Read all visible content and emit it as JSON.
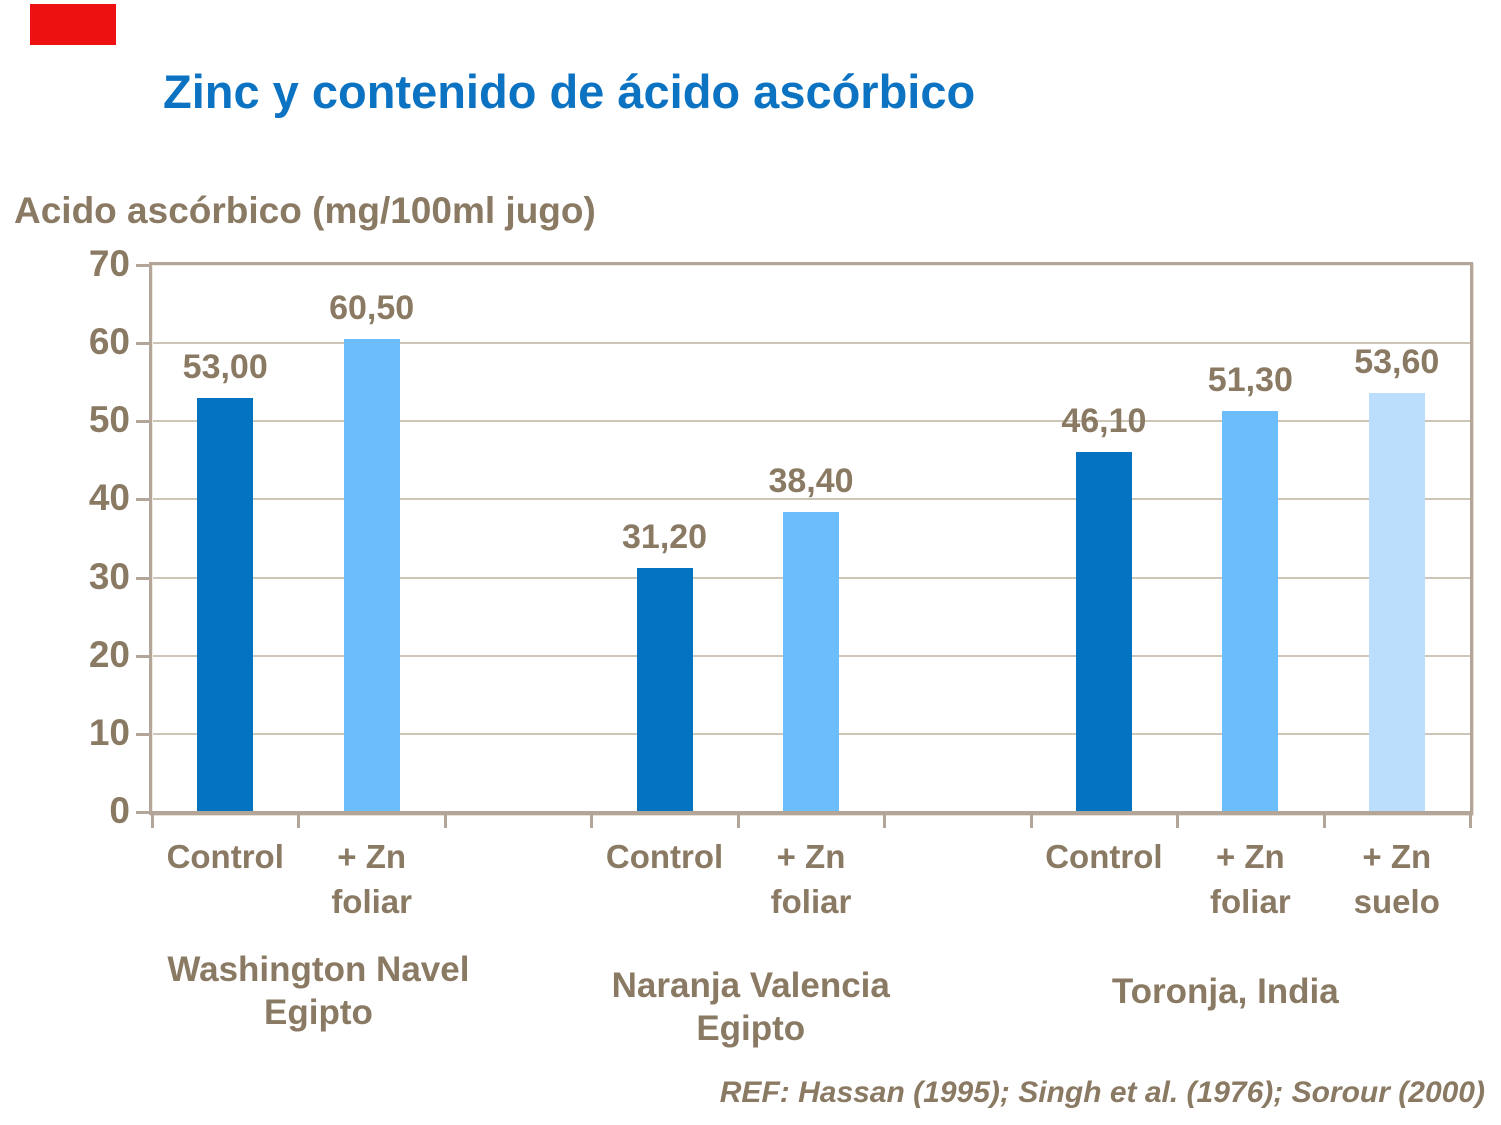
{
  "page": {
    "background": "#ffffff"
  },
  "decoration": {
    "accent_rect_color": "#ee1111"
  },
  "title": {
    "text": "Zinc y contenido de ácido ascórbico",
    "color": "#0c73c3"
  },
  "chart_data": {
    "type": "bar",
    "title": "Zinc y contenido de ácido ascórbico",
    "ylabel": "Acido ascórbico (mg/100ml jugo)",
    "xlabel": "",
    "ylim": [
      0,
      70
    ],
    "yticks": [
      0,
      10,
      20,
      30,
      40,
      50,
      60,
      70
    ],
    "grid": true,
    "legend": "none",
    "value_decimal_separator": ",",
    "groups": [
      {
        "name": "Washington Navel Egipto",
        "name_lines": [
          "Washington Navel",
          "Egipto"
        ],
        "bars": [
          {
            "label_lines": [
              "Control"
            ],
            "value": 53.0,
            "value_label": "53,00",
            "series": "Control",
            "color": "#0473c1"
          },
          {
            "label_lines": [
              "+ Zn",
              "foliar"
            ],
            "value": 60.5,
            "value_label": "60,50",
            "series": "+ Zn foliar",
            "color": "#6cbdfb"
          }
        ]
      },
      {
        "name": "Naranja Valencia Egipto",
        "name_lines": [
          "Naranja Valencia",
          "Egipto"
        ],
        "bars": [
          {
            "label_lines": [
              "Control"
            ],
            "value": 31.2,
            "value_label": "31,20",
            "series": "Control",
            "color": "#0473c1"
          },
          {
            "label_lines": [
              "+ Zn",
              "foliar"
            ],
            "value": 38.4,
            "value_label": "38,40",
            "series": "+ Zn foliar",
            "color": "#6cbdfb"
          }
        ]
      },
      {
        "name": "Toronja, India",
        "name_lines": [
          "Toronja, India"
        ],
        "bars": [
          {
            "label_lines": [
              "Control"
            ],
            "value": 46.1,
            "value_label": "46,10",
            "series": "Control",
            "color": "#0473c1"
          },
          {
            "label_lines": [
              "+ Zn",
              "foliar"
            ],
            "value": 51.3,
            "value_label": "51,30",
            "series": "+ Zn foliar",
            "color": "#6cbdfb"
          },
          {
            "label_lines": [
              "+ Zn",
              "suelo"
            ],
            "value": 53.6,
            "value_label": "53,60",
            "series": "+ Zn suelo",
            "color": "#badefb"
          }
        ]
      }
    ],
    "reference": "REF: Hassan (1995); Singh et al. (1976); Sorour (2000)",
    "colors": {
      "control_bar": "#0473c1",
      "zn_foliar_bar": "#6cbdfb",
      "zn_suelo_bar": "#badefb",
      "axis_text": "#8a7a63",
      "gridline": "#cdc5b8",
      "frame": "#b3a597",
      "title": "#0c73c3"
    }
  }
}
